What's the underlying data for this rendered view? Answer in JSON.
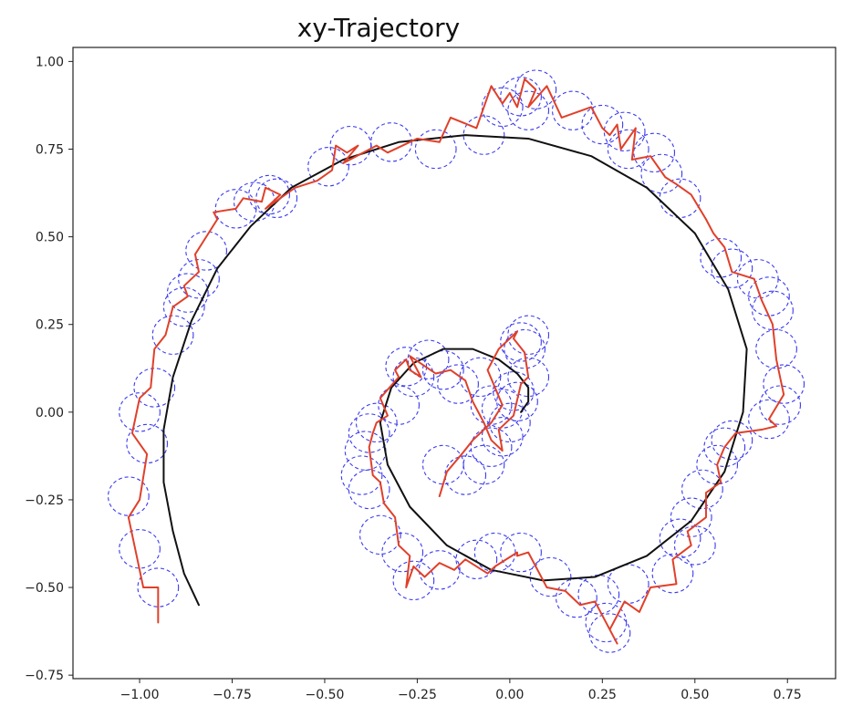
{
  "chart_data": {
    "type": "line",
    "title": "xy-Trajectory",
    "xlabel": "",
    "ylabel": "",
    "xlim": [
      -1.18,
      0.88
    ],
    "ylim": [
      -0.76,
      1.04
    ],
    "x_ticks": [
      "−1.00",
      "−0.75",
      "−0.50",
      "−0.25",
      "0.00",
      "0.25",
      "0.50",
      "0.75"
    ],
    "x_tick_values": [
      -1.0,
      -0.75,
      -0.5,
      -0.25,
      0.0,
      0.25,
      0.5,
      0.75
    ],
    "y_ticks": [
      "1.00",
      "0.75",
      "0.50",
      "0.25",
      "0.00",
      "−0.25",
      "−0.50",
      "−0.75"
    ],
    "y_tick_values": [
      1.0,
      0.75,
      0.5,
      0.25,
      0.0,
      -0.25,
      -0.5,
      -0.75
    ],
    "grid": false,
    "colors": {
      "reference": "#111111",
      "trajectory": "#e0402a",
      "uncertainty": "#3a3af0"
    },
    "series": [
      {
        "style": "solid-black",
        "x": [
          -0.84,
          -0.88,
          -0.91,
          -0.935,
          -0.935,
          -0.91,
          -0.86,
          -0.79,
          -0.7,
          -0.59,
          -0.45,
          -0.3,
          -0.12,
          0.05,
          0.22,
          0.37,
          0.5,
          0.59,
          0.64,
          0.63,
          0.58,
          0.49,
          0.37,
          0.23,
          0.09,
          -0.05,
          -0.17,
          -0.27,
          -0.33,
          -0.35,
          -0.32,
          -0.26,
          -0.18,
          -0.1,
          -0.03,
          0.02,
          0.05,
          0.05,
          0.03
        ],
        "y": [
          -0.55,
          -0.46,
          -0.34,
          -0.2,
          -0.05,
          0.1,
          0.26,
          0.41,
          0.53,
          0.64,
          0.72,
          0.77,
          0.79,
          0.78,
          0.73,
          0.64,
          0.51,
          0.35,
          0.18,
          0.0,
          -0.17,
          -0.31,
          -0.41,
          -0.47,
          -0.48,
          -0.45,
          -0.38,
          -0.27,
          -0.15,
          -0.03,
          0.07,
          0.14,
          0.18,
          0.18,
          0.15,
          0.11,
          0.07,
          0.03,
          0.0
        ]
      },
      {
        "style": "solid-red",
        "x": [
          -0.95,
          -0.95,
          -0.99,
          -1.01,
          -1.03,
          -1.0,
          -0.98,
          -1.02,
          -1.0,
          -0.97,
          -0.96,
          -0.93,
          -0.91,
          -0.87,
          -0.88,
          -0.84,
          -0.85,
          -0.82,
          -0.79,
          -0.8,
          -0.74,
          -0.72,
          -0.67,
          -0.66,
          -0.62,
          -0.66,
          -0.58,
          -0.52,
          -0.48,
          -0.47,
          -0.44,
          -0.41,
          -0.45,
          -0.36,
          -0.33,
          -0.25,
          -0.19,
          -0.16,
          -0.09,
          -0.05,
          -0.02,
          0.0,
          0.02,
          0.04,
          0.07,
          0.05,
          0.1,
          0.14,
          0.22,
          0.25,
          0.27,
          0.29,
          0.3,
          0.34,
          0.33,
          0.38,
          0.42,
          0.45,
          0.49,
          0.53,
          0.55,
          0.58,
          0.6,
          0.66,
          0.68,
          0.71,
          0.72,
          0.74,
          0.7,
          0.72,
          0.68,
          0.61,
          0.58,
          0.56,
          0.57,
          0.53,
          0.53,
          0.48,
          0.49,
          0.44,
          0.45,
          0.38,
          0.35,
          0.31,
          0.28,
          0.27,
          0.29,
          0.23,
          0.19,
          0.15,
          0.1,
          0.05,
          0.02,
          0.02,
          -0.04,
          -0.06,
          -0.12,
          -0.15,
          -0.19,
          -0.23,
          -0.26,
          -0.28,
          -0.27,
          -0.3,
          -0.31,
          -0.34,
          -0.35,
          -0.37,
          -0.38,
          -0.37,
          -0.36,
          -0.33,
          -0.35,
          -0.3,
          -0.31,
          -0.28,
          -0.27,
          -0.24,
          -0.27,
          -0.2,
          -0.16,
          -0.12,
          -0.1,
          -0.07,
          -0.05,
          -0.02,
          -0.03,
          0.01,
          0.03,
          0.05,
          0.04,
          0.01,
          0.02,
          -0.03,
          -0.06,
          -0.02,
          -0.05,
          -0.1,
          -0.13,
          -0.17,
          -0.19
        ],
        "y": [
          -0.6,
          -0.5,
          -0.5,
          -0.4,
          -0.3,
          -0.25,
          -0.12,
          -0.06,
          0.04,
          0.07,
          0.18,
          0.22,
          0.3,
          0.33,
          0.36,
          0.4,
          0.45,
          0.5,
          0.55,
          0.57,
          0.58,
          0.61,
          0.6,
          0.64,
          0.62,
          0.58,
          0.64,
          0.66,
          0.69,
          0.76,
          0.74,
          0.76,
          0.71,
          0.76,
          0.74,
          0.78,
          0.77,
          0.84,
          0.81,
          0.93,
          0.88,
          0.91,
          0.87,
          0.95,
          0.92,
          0.87,
          0.93,
          0.84,
          0.87,
          0.81,
          0.79,
          0.82,
          0.75,
          0.81,
          0.72,
          0.73,
          0.67,
          0.65,
          0.62,
          0.55,
          0.51,
          0.47,
          0.4,
          0.38,
          0.32,
          0.25,
          0.15,
          0.05,
          -0.02,
          -0.04,
          -0.05,
          -0.06,
          -0.1,
          -0.15,
          -0.2,
          -0.23,
          -0.3,
          -0.34,
          -0.38,
          -0.42,
          -0.49,
          -0.5,
          -0.57,
          -0.54,
          -0.6,
          -0.62,
          -0.66,
          -0.54,
          -0.55,
          -0.51,
          -0.5,
          -0.4,
          -0.41,
          -0.4,
          -0.44,
          -0.46,
          -0.42,
          -0.45,
          -0.43,
          -0.47,
          -0.44,
          -0.5,
          -0.41,
          -0.38,
          -0.3,
          -0.26,
          -0.2,
          -0.18,
          -0.1,
          -0.06,
          -0.03,
          -0.01,
          0.04,
          0.1,
          0.12,
          0.15,
          0.12,
          0.1,
          0.16,
          0.11,
          0.12,
          0.09,
          0.03,
          -0.03,
          -0.08,
          -0.11,
          -0.05,
          -0.01,
          0.08,
          0.1,
          0.17,
          0.21,
          0.23,
          0.18,
          0.12,
          0.02,
          -0.03,
          -0.08,
          -0.12,
          -0.17,
          -0.24
        ]
      }
    ],
    "uncertainty_circles": {
      "radius": 0.055,
      "centers": [
        [
          -0.95,
          -0.5
        ],
        [
          -1.0,
          -0.39
        ],
        [
          -1.03,
          -0.24
        ],
        [
          -0.98,
          -0.09
        ],
        [
          -1.0,
          0.0
        ],
        [
          -0.96,
          0.07
        ],
        [
          -0.91,
          0.22
        ],
        [
          -0.88,
          0.3
        ],
        [
          -0.87,
          0.34
        ],
        [
          -0.84,
          0.38
        ],
        [
          -0.82,
          0.46
        ],
        [
          -0.74,
          0.58
        ],
        [
          -0.69,
          0.6
        ],
        [
          -0.65,
          0.62
        ],
        [
          -0.63,
          0.61
        ],
        [
          -0.49,
          0.7
        ],
        [
          -0.43,
          0.76
        ],
        [
          -0.32,
          0.77
        ],
        [
          -0.2,
          0.75
        ],
        [
          -0.07,
          0.79
        ],
        [
          -0.02,
          0.87
        ],
        [
          0.03,
          0.9
        ],
        [
          0.05,
          0.86
        ],
        [
          0.07,
          0.92
        ],
        [
          0.17,
          0.86
        ],
        [
          0.25,
          0.82
        ],
        [
          0.31,
          0.8
        ],
        [
          0.32,
          0.75
        ],
        [
          0.39,
          0.74
        ],
        [
          0.41,
          0.68
        ],
        [
          0.46,
          0.61
        ],
        [
          0.57,
          0.44
        ],
        [
          0.6,
          0.41
        ],
        [
          0.67,
          0.38
        ],
        [
          0.7,
          0.33
        ],
        [
          0.71,
          0.29
        ],
        [
          0.72,
          0.18
        ],
        [
          0.74,
          0.08
        ],
        [
          0.73,
          0.02
        ],
        [
          0.7,
          -0.02
        ],
        [
          0.6,
          -0.08
        ],
        [
          0.58,
          -0.1
        ],
        [
          0.56,
          -0.15
        ],
        [
          0.52,
          -0.22
        ],
        [
          0.49,
          -0.3
        ],
        [
          0.46,
          -0.36
        ],
        [
          0.5,
          -0.38
        ],
        [
          0.44,
          -0.46
        ],
        [
          0.32,
          -0.49
        ],
        [
          0.24,
          -0.52
        ],
        [
          0.26,
          -0.6
        ],
        [
          0.27,
          -0.63
        ],
        [
          0.18,
          -0.53
        ],
        [
          0.11,
          -0.47
        ],
        [
          0.03,
          -0.4
        ],
        [
          -0.04,
          -0.4
        ],
        [
          -0.09,
          -0.42
        ],
        [
          -0.19,
          -0.45
        ],
        [
          -0.26,
          -0.48
        ],
        [
          -0.29,
          -0.4
        ],
        [
          -0.35,
          -0.35
        ],
        [
          -0.38,
          -0.22
        ],
        [
          -0.4,
          -0.18
        ],
        [
          -0.39,
          -0.11
        ],
        [
          -0.38,
          -0.06
        ],
        [
          -0.36,
          -0.03
        ],
        [
          -0.3,
          0.02
        ],
        [
          -0.28,
          0.13
        ],
        [
          -0.26,
          0.1
        ],
        [
          -0.22,
          0.15
        ],
        [
          -0.18,
          0.12
        ],
        [
          -0.14,
          0.08
        ],
        [
          -0.08,
          0.1
        ],
        [
          -0.05,
          0.02
        ],
        [
          -0.02,
          0.01
        ],
        [
          0.01,
          0.06
        ],
        [
          0.03,
          0.2
        ],
        [
          0.05,
          0.22
        ],
        [
          0.04,
          0.18
        ],
        [
          0.05,
          0.1
        ],
        [
          0.02,
          0.03
        ],
        [
          0.0,
          -0.03
        ],
        [
          -0.02,
          -0.07
        ],
        [
          -0.05,
          -0.1
        ],
        [
          -0.07,
          -0.15
        ],
        [
          -0.12,
          -0.18
        ],
        [
          -0.18,
          -0.15
        ]
      ]
    }
  }
}
